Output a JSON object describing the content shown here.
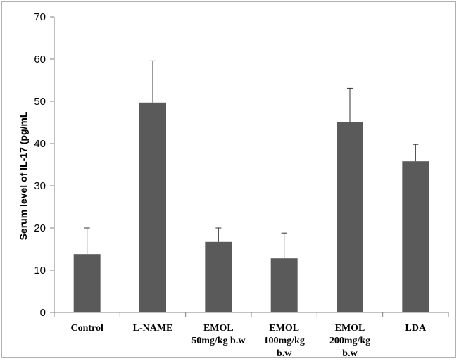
{
  "chart_data": {
    "type": "bar",
    "title": "",
    "xlabel": "",
    "ylabel": "Serum level of IL-17 (pg/mL",
    "ylim": [
      0,
      70
    ],
    "yticks": [
      0,
      10,
      20,
      30,
      40,
      50,
      60,
      70
    ],
    "grid": false,
    "legend": "none",
    "bar_color": "#5a5a5a",
    "categories": [
      [
        "Control"
      ],
      [
        "L-NAME"
      ],
      [
        "EMOL",
        "50mg/kg b.w"
      ],
      [
        "EMOL",
        "100mg/kg",
        "b.w"
      ],
      [
        "EMOL",
        "200mg/kg",
        "b.w"
      ],
      [
        "LDA"
      ]
    ],
    "values": [
      13.8,
      49.7,
      16.7,
      12.8,
      45.1,
      35.8
    ],
    "errors": [
      6.2,
      9.9,
      3.3,
      6.0,
      8.0,
      4.0
    ]
  }
}
